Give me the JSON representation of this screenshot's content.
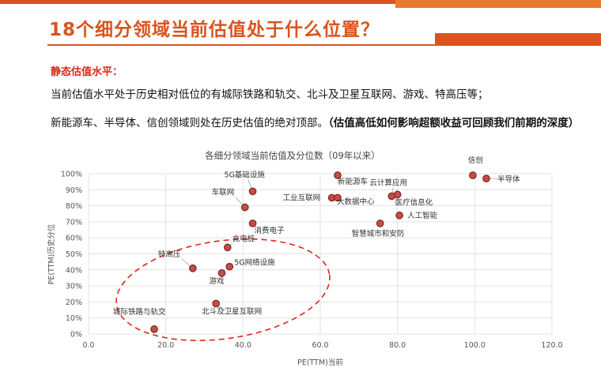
{
  "slide": {
    "title": "18个细分领域当前估值处于什么位置？",
    "subhead": "静态估值水平：",
    "para1": "当前估值水平处于历史相对低位的有城际铁路和轨交、北斗及卫星互联网、游戏、特高压等；",
    "para2_normal": "新能源车、半导体、信创领域则处在历史估值的绝对顶部。",
    "para2_bold": "（估值高低如何影响超额收益可回顾我们前期的深度）"
  },
  "colors": {
    "accent": "#d9541f",
    "point_fill": "#c0504d",
    "point_stroke": "#8b2520",
    "ellipse": "#e0261a"
  },
  "chart_data": {
    "type": "scatter",
    "title": "各细分领域当前估值及分位数（09年以来）",
    "xlabel": "PE(TTM)当前",
    "ylabel": "PE(TTM)历史分位",
    "xlim": [
      0,
      120
    ],
    "ylim": [
      0,
      100
    ],
    "x_ticks": [
      "0.0",
      "20.0",
      "40.0",
      "60.0",
      "80.0",
      "100.0",
      "120.0"
    ],
    "y_ticks": [
      "0%",
      "10%",
      "20%",
      "30%",
      "40%",
      "50%",
      "60%",
      "70%",
      "80%",
      "90%",
      "100%"
    ],
    "points": [
      {
        "name": "城际铁路与轨交",
        "x": 17,
        "y": 3
      },
      {
        "name": "北斗及卫星互联网",
        "x": 33,
        "y": 19
      },
      {
        "name": "游戏",
        "x": 34.5,
        "y": 38
      },
      {
        "name": "特高压",
        "x": 27,
        "y": 41
      },
      {
        "name": "5G网络设施",
        "x": 36.5,
        "y": 42
      },
      {
        "name": "充电桩",
        "x": 36,
        "y": 54
      },
      {
        "name": "消费电子",
        "x": 42.5,
        "y": 69
      },
      {
        "name": "车联网",
        "x": 40.5,
        "y": 79
      },
      {
        "name": "5G基础设施",
        "x": 42.5,
        "y": 89
      },
      {
        "name": "新能源车",
        "x": 64.5,
        "y": 99
      },
      {
        "name": "工业互联网",
        "x": 63,
        "y": 85
      },
      {
        "name": "大数据中心",
        "x": 64.5,
        "y": 85
      },
      {
        "name": "云计算应用",
        "x": 78.5,
        "y": 86
      },
      {
        "name": "医疗信息化",
        "x": 80,
        "y": 87
      },
      {
        "name": "人工智能",
        "x": 80.5,
        "y": 74
      },
      {
        "name": "智慧城市和安防",
        "x": 75.5,
        "y": 69
      },
      {
        "name": "信创",
        "x": 99.5,
        "y": 99
      },
      {
        "name": "半导体",
        "x": 103,
        "y": 97
      }
    ]
  }
}
